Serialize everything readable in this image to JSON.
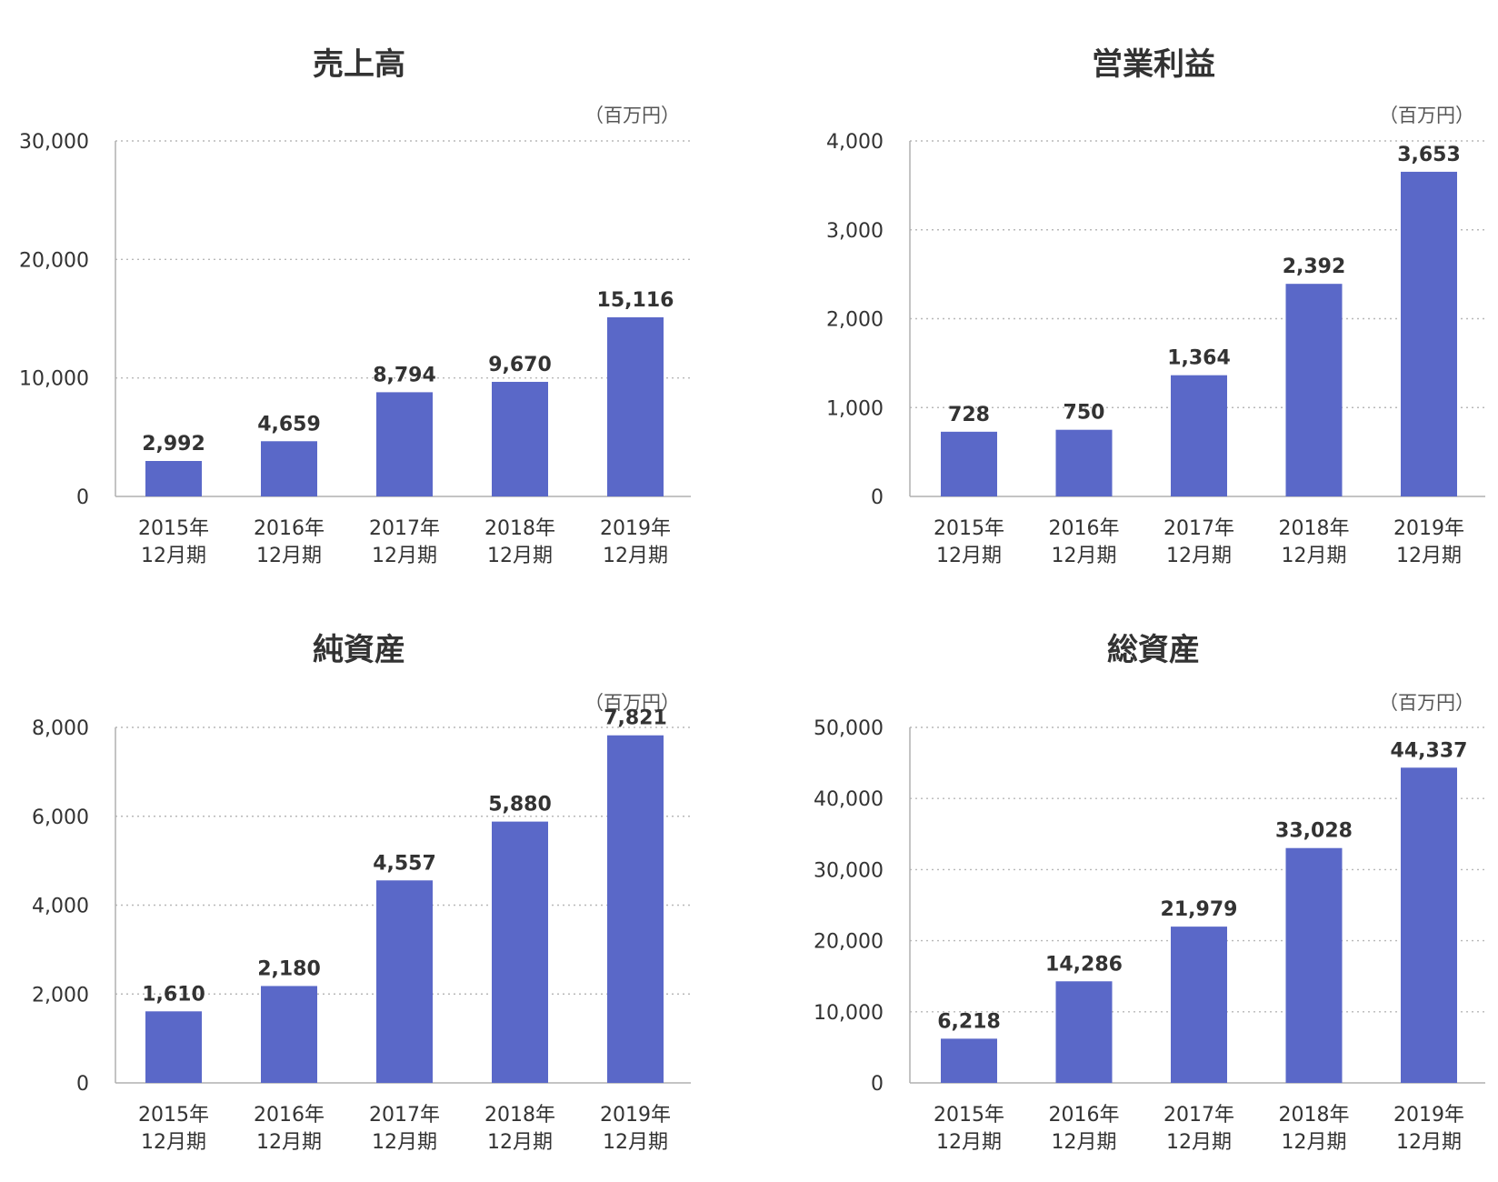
{
  "colors": {
    "bar": "#5a68c8",
    "text": "#333333",
    "grid": "#b8b8b8"
  },
  "chart_data": [
    {
      "type": "bar",
      "title": "売上高",
      "unit": "（百万円）",
      "categories": [
        [
          "2015年",
          "12月期"
        ],
        [
          "2016年",
          "12月期"
        ],
        [
          "2017年",
          "12月期"
        ],
        [
          "2018年",
          "12月期"
        ],
        [
          "2019年",
          "12月期"
        ]
      ],
      "values": [
        2992,
        4659,
        8794,
        9670,
        15116
      ],
      "value_labels": [
        "2,992",
        "4,659",
        "8,794",
        "9,670",
        "15,116"
      ],
      "yticks": [
        0,
        10000,
        20000,
        30000
      ],
      "ytick_labels": [
        "0",
        "10,000",
        "20,000",
        "30,000"
      ],
      "ylim": [
        0,
        30000
      ],
      "grid": true
    },
    {
      "type": "bar",
      "title": "営業利益",
      "unit": "（百万円）",
      "categories": [
        [
          "2015年",
          "12月期"
        ],
        [
          "2016年",
          "12月期"
        ],
        [
          "2017年",
          "12月期"
        ],
        [
          "2018年",
          "12月期"
        ],
        [
          "2019年",
          "12月期"
        ]
      ],
      "values": [
        728,
        750,
        1364,
        2392,
        3653
      ],
      "value_labels": [
        "728",
        "750",
        "1,364",
        "2,392",
        "3,653"
      ],
      "yticks": [
        0,
        1000,
        2000,
        3000,
        4000
      ],
      "ytick_labels": [
        "0",
        "1,000",
        "2,000",
        "3,000",
        "4,000"
      ],
      "ylim": [
        0,
        4000
      ],
      "grid": true
    },
    {
      "type": "bar",
      "title": "純資産",
      "unit": "（百万円）",
      "categories": [
        [
          "2015年",
          "12月期"
        ],
        [
          "2016年",
          "12月期"
        ],
        [
          "2017年",
          "12月期"
        ],
        [
          "2018年",
          "12月期"
        ],
        [
          "2019年",
          "12月期"
        ]
      ],
      "values": [
        1610,
        2180,
        4557,
        5880,
        7821
      ],
      "value_labels": [
        "1,610",
        "2,180",
        "4,557",
        "5,880",
        "7,821"
      ],
      "yticks": [
        0,
        2000,
        4000,
        6000,
        8000
      ],
      "ytick_labels": [
        "0",
        "2,000",
        "4,000",
        "6,000",
        "8,000"
      ],
      "ylim": [
        0,
        8000
      ],
      "grid": true
    },
    {
      "type": "bar",
      "title": "総資産",
      "unit": "（百万円）",
      "categories": [
        [
          "2015年",
          "12月期"
        ],
        [
          "2016年",
          "12月期"
        ],
        [
          "2017年",
          "12月期"
        ],
        [
          "2018年",
          "12月期"
        ],
        [
          "2019年",
          "12月期"
        ]
      ],
      "values": [
        6218,
        14286,
        21979,
        33028,
        44337
      ],
      "value_labels": [
        "6,218",
        "14,286",
        "21,979",
        "33,028",
        "44,337"
      ],
      "yticks": [
        0,
        10000,
        20000,
        30000,
        40000,
        50000
      ],
      "ytick_labels": [
        "0",
        "10,000",
        "20,000",
        "30,000",
        "40,000",
        "50,000"
      ],
      "ylim": [
        0,
        50000
      ],
      "grid": true
    }
  ]
}
